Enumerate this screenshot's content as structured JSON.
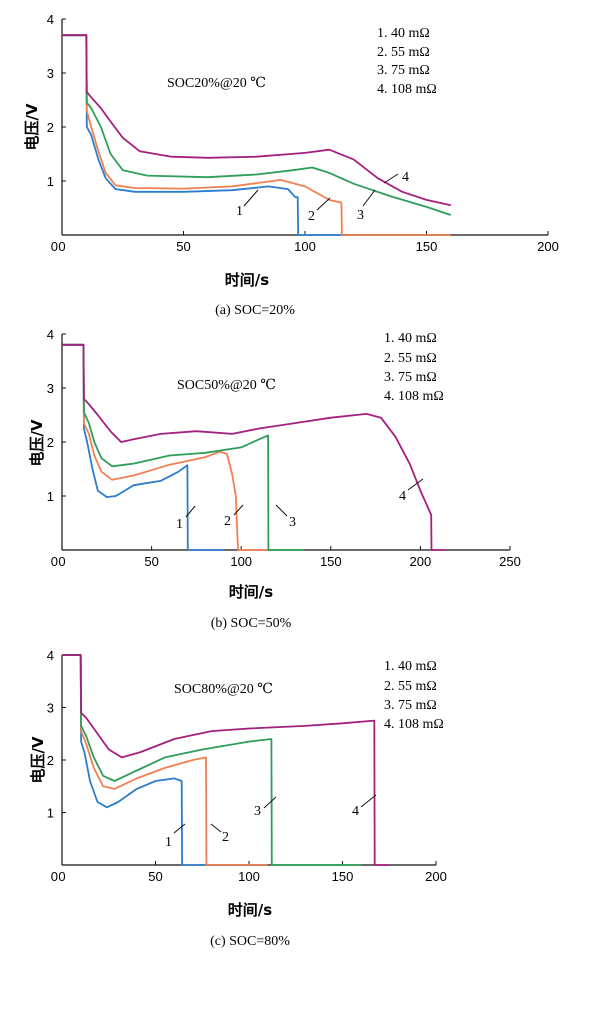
{
  "colors": {
    "series_1": "#2e7ccc",
    "series_2": "#f07f52",
    "series_3": "#2f9e5a",
    "series_4": "#a3207f",
    "axis": "#111111"
  },
  "chart_data": [
    {
      "type": "line",
      "caption": "(a) SOC=20%",
      "condition": "SOC20%@20 ℃",
      "xlabel": "时间/s",
      "ylabel": "电压/V",
      "xlim": [
        0,
        200
      ],
      "ylim": [
        0,
        4
      ],
      "xticks": [
        "0",
        "50",
        "100",
        "150",
        "200"
      ],
      "yticks": [
        "1",
        "2",
        "3",
        "4"
      ],
      "legend": [
        "1. 40 mΩ",
        "2. 55 mΩ",
        "3. 75 mΩ",
        "4. 108 mΩ"
      ],
      "curve_labels": [
        "1",
        "2",
        "3",
        "4"
      ],
      "series": [
        {
          "name": "1. 40 mΩ",
          "points": [
            [
              0,
              3.7
            ],
            [
              10,
              3.7
            ],
            [
              10.2,
              2.0
            ],
            [
              12,
              1.85
            ],
            [
              15,
              1.4
            ],
            [
              18,
              1.05
            ],
            [
              22,
              0.85
            ],
            [
              30,
              0.8
            ],
            [
              50,
              0.8
            ],
            [
              70,
              0.83
            ],
            [
              85,
              0.9
            ],
            [
              93,
              0.85
            ],
            [
              96,
              0.7
            ],
            [
              97,
              0.7
            ],
            [
              97.2,
              0
            ],
            [
              160,
              0
            ]
          ]
        },
        {
          "name": "2. 55 mΩ",
          "points": [
            [
              0,
              3.7
            ],
            [
              10,
              3.7
            ],
            [
              10.2,
              2.3
            ],
            [
              12,
              2.0
            ],
            [
              15,
              1.55
            ],
            [
              18,
              1.15
            ],
            [
              22,
              0.92
            ],
            [
              30,
              0.87
            ],
            [
              50,
              0.86
            ],
            [
              70,
              0.9
            ],
            [
              90,
              1.02
            ],
            [
              100,
              0.9
            ],
            [
              110,
              0.65
            ],
            [
              115,
              0.6
            ],
            [
              115.2,
              0
            ],
            [
              160,
              0
            ]
          ]
        },
        {
          "name": "3. 75 mΩ",
          "points": [
            [
              0,
              3.7
            ],
            [
              10,
              3.7
            ],
            [
              10.2,
              2.45
            ],
            [
              12,
              2.35
            ],
            [
              16,
              2.0
            ],
            [
              20,
              1.5
            ],
            [
              25,
              1.2
            ],
            [
              35,
              1.1
            ],
            [
              60,
              1.07
            ],
            [
              80,
              1.12
            ],
            [
              95,
              1.2
            ],
            [
              103,
              1.25
            ],
            [
              110,
              1.15
            ],
            [
              120,
              0.95
            ],
            [
              135,
              0.72
            ],
            [
              150,
              0.52
            ],
            [
              160,
              0.37
            ]
          ]
        },
        {
          "name": "4. 108 mΩ",
          "points": [
            [
              0,
              3.7
            ],
            [
              10,
              3.7
            ],
            [
              10.2,
              2.65
            ],
            [
              12,
              2.55
            ],
            [
              16,
              2.35
            ],
            [
              20,
              2.1
            ],
            [
              25,
              1.8
            ],
            [
              32,
              1.55
            ],
            [
              45,
              1.45
            ],
            [
              60,
              1.43
            ],
            [
              80,
              1.45
            ],
            [
              100,
              1.52
            ],
            [
              110,
              1.58
            ],
            [
              120,
              1.4
            ],
            [
              130,
              1.05
            ],
            [
              140,
              0.8
            ],
            [
              150,
              0.65
            ],
            [
              160,
              0.55
            ]
          ]
        }
      ]
    },
    {
      "type": "line",
      "caption": "(b) SOC=50%",
      "condition": "SOC50%@20 ℃",
      "xlabel": "时间/s",
      "ylabel": "电压/V",
      "xlim": [
        0,
        250
      ],
      "ylim": [
        0,
        4
      ],
      "xticks": [
        "0",
        "50",
        "100",
        "150",
        "200",
        "250"
      ],
      "yticks": [
        "1",
        "2",
        "3",
        "4"
      ],
      "legend": [
        "1. 40 mΩ",
        "2. 55 mΩ",
        "3. 75 mΩ",
        "4. 108 mΩ"
      ],
      "curve_labels": [
        "1",
        "2",
        "3",
        "4"
      ],
      "series": [
        {
          "name": "1. 40 mΩ",
          "points": [
            [
              0,
              3.8
            ],
            [
              12,
              3.8
            ],
            [
              12.2,
              2.25
            ],
            [
              14,
              2.0
            ],
            [
              17,
              1.5
            ],
            [
              20,
              1.1
            ],
            [
              25,
              0.98
            ],
            [
              30,
              1.0
            ],
            [
              40,
              1.2
            ],
            [
              55,
              1.28
            ],
            [
              65,
              1.45
            ],
            [
              70,
              1.57
            ],
            [
              70.2,
              0
            ],
            [
              90,
              0
            ]
          ]
        },
        {
          "name": "2. 55 mΩ",
          "points": [
            [
              0,
              3.8
            ],
            [
              12,
              3.8
            ],
            [
              12.2,
              2.35
            ],
            [
              15,
              2.15
            ],
            [
              18,
              1.75
            ],
            [
              22,
              1.45
            ],
            [
              28,
              1.3
            ],
            [
              40,
              1.38
            ],
            [
              60,
              1.58
            ],
            [
              80,
              1.72
            ],
            [
              88,
              1.82
            ],
            [
              92,
              1.78
            ],
            [
              95,
              1.4
            ],
            [
              97,
              1.0
            ],
            [
              98.2,
              0
            ],
            [
              115,
              0
            ]
          ]
        },
        {
          "name": "3. 75 mΩ",
          "points": [
            [
              0,
              3.8
            ],
            [
              12,
              3.8
            ],
            [
              12.2,
              2.55
            ],
            [
              15,
              2.35
            ],
            [
              18,
              2.0
            ],
            [
              22,
              1.7
            ],
            [
              28,
              1.55
            ],
            [
              40,
              1.6
            ],
            [
              60,
              1.75
            ],
            [
              80,
              1.8
            ],
            [
              100,
              1.9
            ],
            [
              110,
              2.05
            ],
            [
              115,
              2.12
            ],
            [
              115.2,
              0
            ],
            [
              135,
              0
            ]
          ]
        },
        {
          "name": "4. 108 mΩ",
          "points": [
            [
              0,
              3.8
            ],
            [
              12,
              3.8
            ],
            [
              12.2,
              2.8
            ],
            [
              15,
              2.7
            ],
            [
              20,
              2.5
            ],
            [
              27,
              2.2
            ],
            [
              33,
              2.0
            ],
            [
              40,
              2.05
            ],
            [
              55,
              2.15
            ],
            [
              75,
              2.2
            ],
            [
              95,
              2.15
            ],
            [
              110,
              2.25
            ],
            [
              130,
              2.35
            ],
            [
              150,
              2.45
            ],
            [
              170,
              2.52
            ],
            [
              178,
              2.45
            ],
            [
              186,
              2.1
            ],
            [
              194,
              1.6
            ],
            [
              200,
              1.1
            ],
            [
              206,
              0.65
            ],
            [
              206.2,
              0
            ],
            [
              214,
              0
            ]
          ]
        }
      ]
    },
    {
      "type": "line",
      "caption": "(c) SOC=80%",
      "condition": "SOC80%@20 ℃",
      "xlabel": "时间/s",
      "ylabel": "电压/V",
      "xlim": [
        0,
        200
      ],
      "ylim": [
        0,
        4
      ],
      "xticks": [
        "0",
        "50",
        "100",
        "150",
        "200"
      ],
      "yticks": [
        "1",
        "2",
        "3",
        "4"
      ],
      "legend": [
        "1. 40 mΩ",
        "2. 55 mΩ",
        "3. 75 mΩ",
        "4. 108 mΩ"
      ],
      "curve_labels": [
        "1",
        "2",
        "3",
        "4"
      ],
      "series": [
        {
          "name": "1. 40 mΩ",
          "points": [
            [
              0,
              4.0
            ],
            [
              10,
              4.0
            ],
            [
              10.2,
              2.35
            ],
            [
              12,
              2.15
            ],
            [
              15,
              1.6
            ],
            [
              19,
              1.2
            ],
            [
              24,
              1.1
            ],
            [
              30,
              1.2
            ],
            [
              40,
              1.45
            ],
            [
              50,
              1.6
            ],
            [
              60,
              1.65
            ],
            [
              64,
              1.6
            ],
            [
              64.2,
              0
            ],
            [
              110,
              0
            ]
          ]
        },
        {
          "name": "2. 55 mΩ",
          "points": [
            [
              0,
              4.0
            ],
            [
              10,
              4.0
            ],
            [
              10.2,
              2.55
            ],
            [
              13,
              2.3
            ],
            [
              17,
              1.85
            ],
            [
              22,
              1.5
            ],
            [
              28,
              1.45
            ],
            [
              40,
              1.65
            ],
            [
              55,
              1.85
            ],
            [
              70,
              2.0
            ],
            [
              77,
              2.05
            ],
            [
              77.2,
              0
            ],
            [
              110,
              0
            ]
          ]
        },
        {
          "name": "3. 75 mΩ",
          "points": [
            [
              0,
              4.0
            ],
            [
              10,
              4.0
            ],
            [
              10.2,
              2.65
            ],
            [
              13,
              2.45
            ],
            [
              17,
              2.05
            ],
            [
              22,
              1.7
            ],
            [
              28,
              1.6
            ],
            [
              40,
              1.8
            ],
            [
              55,
              2.05
            ],
            [
              75,
              2.2
            ],
            [
              100,
              2.35
            ],
            [
              112,
              2.4
            ],
            [
              112.2,
              0
            ],
            [
              160,
              0
            ]
          ]
        },
        {
          "name": "4. 108 mΩ",
          "points": [
            [
              0,
              4.0
            ],
            [
              10,
              4.0
            ],
            [
              10.2,
              2.9
            ],
            [
              13,
              2.8
            ],
            [
              18,
              2.55
            ],
            [
              25,
              2.2
            ],
            [
              32,
              2.05
            ],
            [
              42,
              2.15
            ],
            [
              60,
              2.4
            ],
            [
              80,
              2.55
            ],
            [
              100,
              2.6
            ],
            [
              130,
              2.65
            ],
            [
              150,
              2.7
            ],
            [
              167,
              2.75
            ],
            [
              167.2,
              0
            ],
            [
              175,
              0
            ]
          ]
        }
      ]
    }
  ]
}
